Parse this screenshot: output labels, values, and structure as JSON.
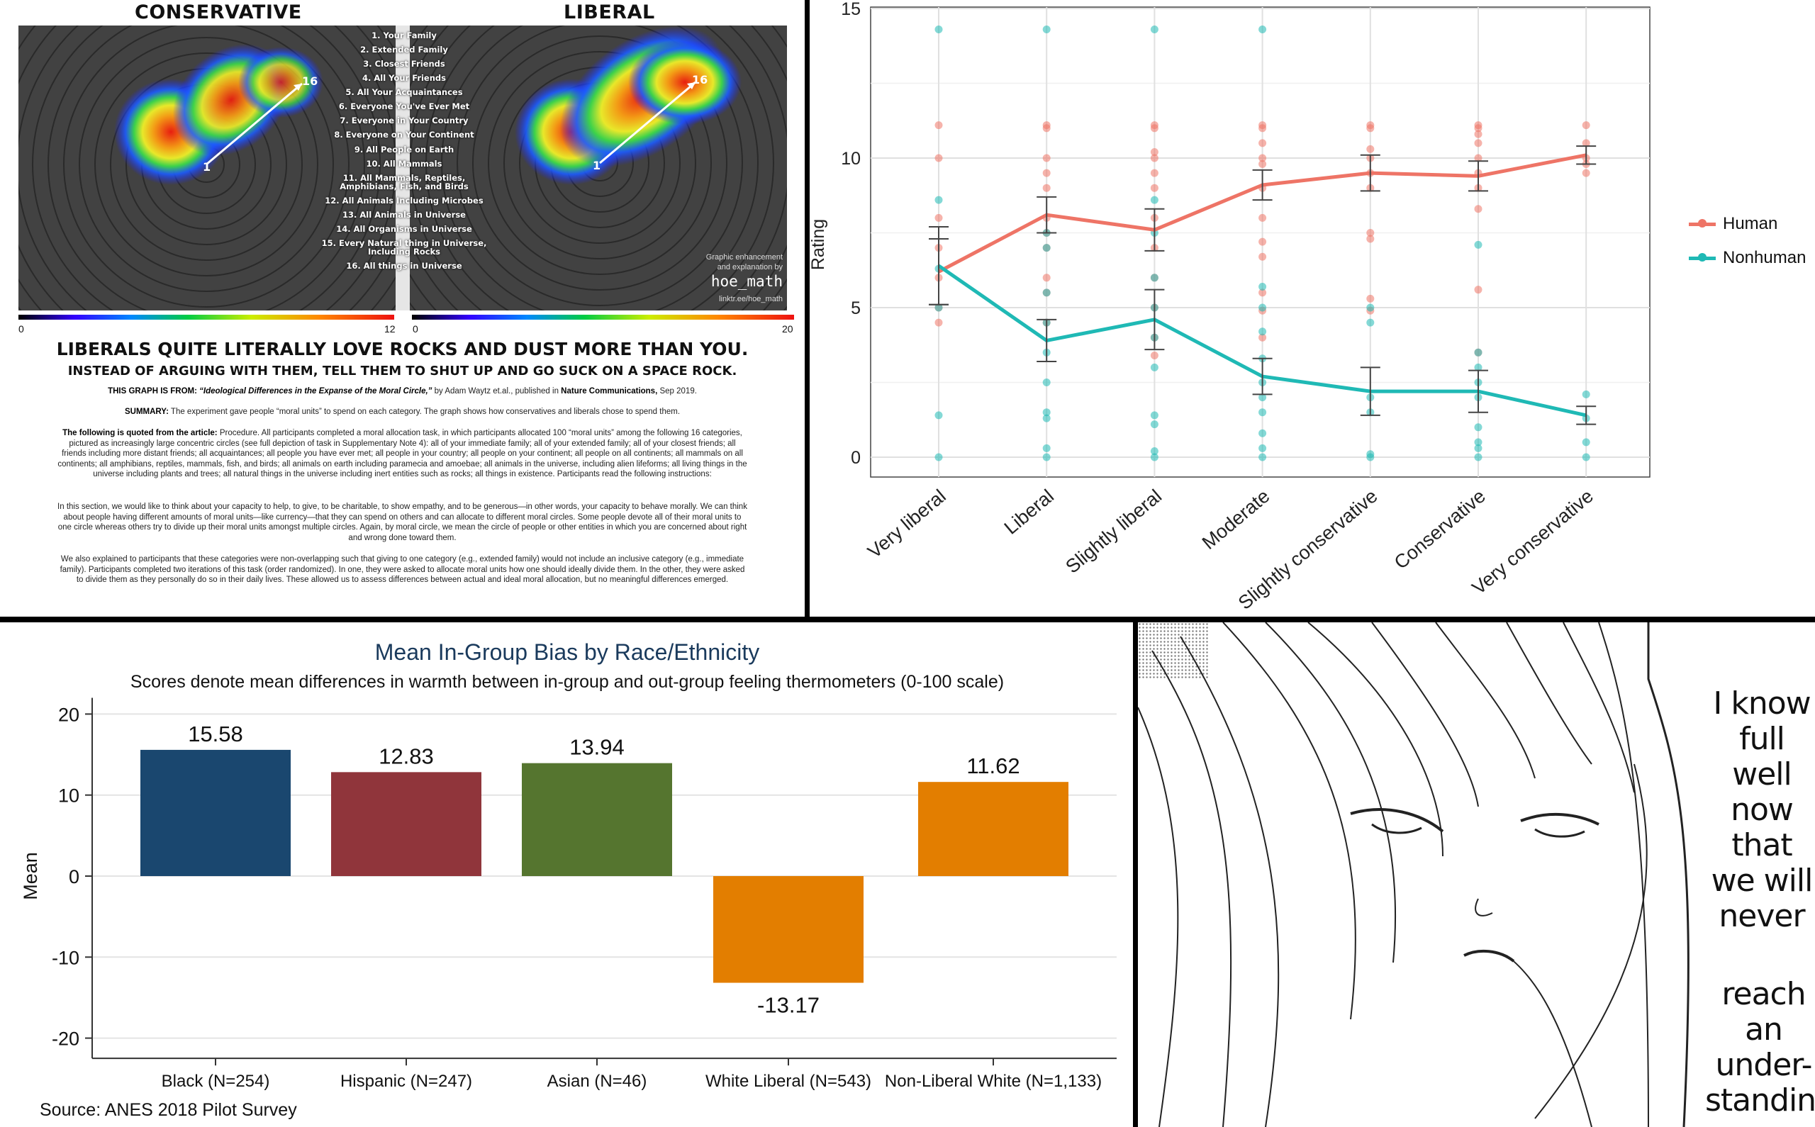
{
  "moral_circle": {
    "left_title": "CONSERVATIVE",
    "right_title": "LIBERAL",
    "categories": [
      "1. Your Family",
      "2. Extended Family",
      "3. Closest Friends",
      "4. All Your Friends",
      "5. All Your Acquaintances",
      "6. Everyone You've Ever Met",
      "7. Everyone in Your Country",
      "8. Everyone on Your Continent",
      "9. All People on Earth",
      "10. All Mammals",
      "11. All Mammals, Reptiles, Amphibians, Fish, and Birds",
      "12. All Animals Including Microbes",
      "13. All Animals in Universe",
      "14. All Organisms in Universe",
      "15. Every Natural thing in Universe, Including Rocks",
      "16. All things in Universe"
    ],
    "marker_start": "1",
    "marker_end": "16",
    "credit_line1": "Graphic enhancement",
    "credit_line2": "and explanation by",
    "credit_handle": "hoe_math",
    "credit_link": "linktr.ee/hoe_math",
    "left_scale_min": "0",
    "left_scale_max": "12",
    "right_scale_min": "0",
    "right_scale_max": "20",
    "headline": "LIBERALS QUITE LITERALLY LOVE ROCKS AND DUST MORE THAN YOU.",
    "subheadline": "INSTEAD OF ARGUING WITH THEM, TELL THEM TO SHUT UP AND GO SUCK ON A SPACE ROCK.",
    "source_label": "THIS GRAPH IS FROM:",
    "source_title": "“Ideological Differences in the Expanse of the Moral Circle,”",
    "source_by": " by Adam Waytz et.al., published in ",
    "source_journal": "Nature Communications,",
    "source_date": " Sep 2019.",
    "summary_label": "SUMMARY:",
    "summary_text": " The experiment gave people “moral units” to spend on each category. The graph shows how conservatives and liberals chose to spend them.",
    "quote_label": "The following is quoted from the article:",
    "quote_text": " Procedure. All participants completed a moral allocation task, in which participants allocated 100 “moral units” among the following 16 categories, pictured as increasingly large concentric circles (see full depiction of task in Supplementary Note 4): all of your immediate family; all of your extended family; all of your closest friends; all friends including more distant friends; all acquaintances; all people you have ever met; all people in your country; all people on your continent; all people on all continents; all mammals on all continents; all amphibians, reptiles, mammals, fish, and birds; all animals on earth including paramecia and amoebae; all animals in the universe, including alien lifeforms; all living things in the universe including plants and trees; all natural things in the universe including inert entities such as rocks; all things in existence. Participants read the following instructions:",
    "instructions": "In this section, we would like to think about your capacity to help, to give, to be charitable, to show empathy, and to be generous—in other words, your capacity to behave morally. We can think about people having different amounts of moral units—like currency—that they can spend on others and can allocate to different moral circles. Some people devote all of their moral units to one circle whereas others try to divide up their moral units amongst multiple circles. Again, by moral circle, we mean the circle of people or other entities in which you are concerned about right and wrong done toward them.",
    "explanation": "We also explained to participants that these categories were non-overlapping such that giving to one category (e.g., extended family) would not include an inclusive category (e.g., immediate family). Participants completed two iterations of this task (order randomized). In one, they were asked to allocate moral units how one should ideally divide them. In the other, they were asked to divide them as they personally do so in their daily lives. These allowed us to assess differences between actual and ideal moral allocation, but no meaningful differences emerged."
  },
  "chart_data": [
    {
      "type": "line",
      "title": "",
      "xlabel": "",
      "ylabel": "Rating",
      "ylim": [
        0,
        15
      ],
      "yticks": [
        "0",
        "5",
        "10",
        "15"
      ],
      "grid": true,
      "legend_placement": "right",
      "categories": [
        "Very liberal",
        "Liberal",
        "Slightly liberal",
        "Moderate",
        "Slightly conservative",
        "Conservative",
        "Very conservative"
      ],
      "series": [
        {
          "name": "Human",
          "color": "#ee7466",
          "values": [
            6.2,
            8.1,
            7.6,
            9.1,
            9.5,
            9.4,
            10.1
          ],
          "errors": [
            1.1,
            0.6,
            0.7,
            0.5,
            0.6,
            0.5,
            0.3
          ],
          "points": [
            [
              11.1,
              10,
              8,
              7,
              6,
              5,
              4.5
            ],
            [
              11.1,
              11,
              10,
              9.5,
              9,
              8,
              7.5,
              7,
              6,
              5.5,
              4.5
            ],
            [
              11.1,
              11,
              10.2,
              10,
              9.5,
              9,
              8,
              7,
              6,
              5,
              4,
              3.4
            ],
            [
              11.1,
              11,
              10.5,
              10,
              9.8,
              9,
              8,
              7.2,
              6.7,
              5.5,
              4.9,
              4
            ],
            [
              11.1,
              11,
              10.3,
              10,
              9.5,
              9,
              7.5,
              7.3,
              5.3,
              4.9
            ],
            [
              11.1,
              11,
              10.8,
              10.5,
              10,
              9.5,
              9,
              8.3,
              5.6,
              3.5
            ],
            [
              11.1,
              10.5,
              10,
              9.8,
              9.5
            ]
          ]
        },
        {
          "name": "Nonhuman",
          "color": "#1fb9b5",
          "values": [
            6.4,
            3.9,
            4.6,
            2.7,
            2.2,
            2.2,
            1.4
          ],
          "errors": [
            1.3,
            0.7,
            1.0,
            0.6,
            0.8,
            0.7,
            0.3
          ],
          "points": [
            [
              14.3,
              8.6,
              6.3,
              5,
              1.4,
              0
            ],
            [
              14.3,
              7.5,
              7,
              5.5,
              4.5,
              3.5,
              2.5,
              1.5,
              1.3,
              0.3,
              0
            ],
            [
              14.3,
              8.6,
              7.5,
              6,
              5,
              4,
              3,
              1.4,
              1.1,
              0.2,
              0
            ],
            [
              14.3,
              5.7,
              5,
              4.2,
              3.3,
              2.5,
              2,
              1.5,
              0.8,
              0.3,
              0
            ],
            [
              5,
              4.5,
              2,
              1.5,
              0.1,
              0
            ],
            [
              7.1,
              3.5,
              3,
              2.5,
              2,
              1,
              0.5,
              0.3,
              0
            ],
            [
              2.1,
              1.3,
              0.5,
              0
            ]
          ]
        }
      ]
    },
    {
      "type": "bar",
      "title": "Mean In-Group Bias by Race/Ethnicity",
      "subtitle": "Scores denote mean differences in warmth between in-group and out-group feeling thermometers (0-100 scale)",
      "xlabel": "",
      "ylabel": "Mean",
      "ylim": [
        -22,
        22
      ],
      "yticks": [
        "20",
        "10",
        "0",
        "-10",
        "-20"
      ],
      "grid": true,
      "categories": [
        "Black (N=254)",
        "Hispanic (N=247)",
        "Asian (N=46)",
        "White Liberal (N=543)",
        "Non-Liberal White (N=1,133)"
      ],
      "values": [
        15.58,
        12.83,
        13.94,
        -13.17,
        11.62
      ],
      "labels": [
        "15.58",
        "12.83",
        "13.94",
        "-13.17",
        "11.62"
      ],
      "colors": [
        "#1a476f",
        "#90353b",
        "#55752f",
        "#e37e00",
        "#e37e00"
      ],
      "source": "Source: ANES 2018 Pilot Survey"
    }
  ],
  "manga": {
    "bubble1": [
      "I know",
      "full well",
      "now that",
      "we will",
      "never"
    ],
    "bubble2": [
      "reach an",
      "under-",
      "standing."
    ]
  }
}
